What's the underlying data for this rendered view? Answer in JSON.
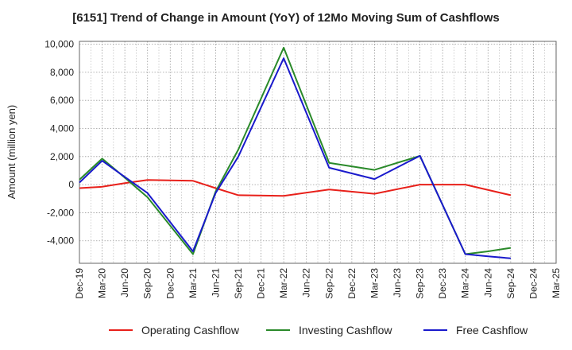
{
  "chart_data": {
    "type": "line",
    "title": "[6151]  Trend of Change in Amount (YoY) of 12Mo Moving Sum of Cashflows",
    "xlabel": "",
    "ylabel": "Amount (million yen)",
    "ylim": [
      -5600,
      10200
    ],
    "yticks": [
      10000,
      8000,
      6000,
      4000,
      2000,
      0,
      -2000,
      -4000
    ],
    "ytick_labels": [
      "10,000",
      "8,000",
      "6,000",
      "4,000",
      "2,000",
      "0",
      "-2,000",
      "-4,000"
    ],
    "categories": [
      "Dec-19",
      "Mar-20",
      "Jun-20",
      "Sep-20",
      "Dec-20",
      "Mar-21",
      "Jun-21",
      "Sep-21",
      "Dec-21",
      "Mar-22",
      "Jun-22",
      "Sep-22",
      "Dec-22",
      "Mar-23",
      "Jun-23",
      "Sep-23",
      "Dec-23",
      "Mar-24",
      "Jun-24",
      "Sep-24",
      "Dec-24",
      "Mar-25"
    ],
    "grid": true,
    "legend_position": "bottom",
    "series": [
      {
        "name": "Operating Cashflow",
        "color": "#e8201a",
        "values": [
          -250,
          -150,
          100,
          330,
          null,
          270,
          -250,
          -750,
          null,
          -800,
          null,
          -350,
          null,
          -650,
          null,
          0,
          null,
          0,
          null,
          -750,
          null,
          null
        ]
      },
      {
        "name": "Investing Cashflow",
        "color": "#2a8a2a",
        "values": [
          350,
          1850,
          500,
          -900,
          null,
          -4950,
          -500,
          2500,
          null,
          9750,
          null,
          1550,
          null,
          1050,
          null,
          2050,
          null,
          -4950,
          -4750,
          -4500,
          null,
          null
        ]
      },
      {
        "name": "Free Cashflow",
        "color": "#1a1acc",
        "values": [
          150,
          1700,
          550,
          -600,
          null,
          -4750,
          -600,
          2000,
          null,
          9000,
          null,
          1200,
          null,
          400,
          null,
          2050,
          null,
          -4950,
          -5100,
          -5250,
          null,
          null
        ]
      }
    ]
  }
}
